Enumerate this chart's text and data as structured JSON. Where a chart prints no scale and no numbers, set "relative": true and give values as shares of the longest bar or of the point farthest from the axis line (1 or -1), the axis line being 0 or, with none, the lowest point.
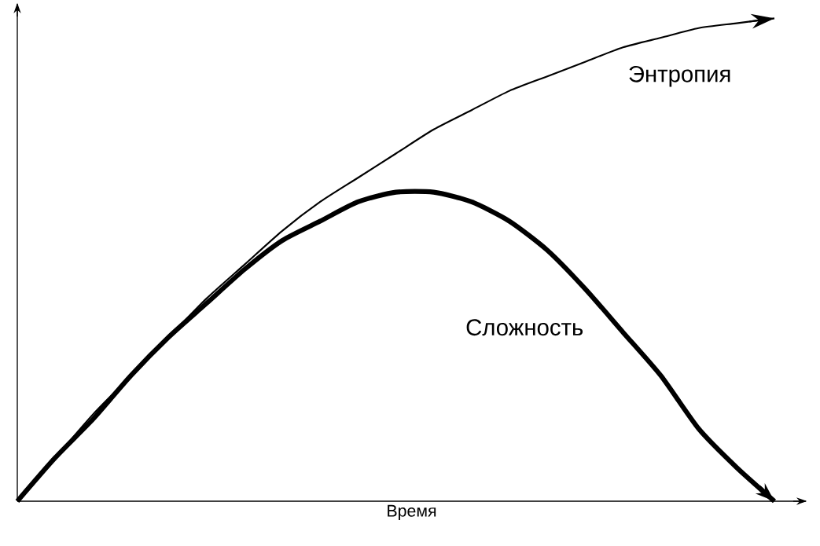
{
  "chart_data": {
    "type": "line",
    "relative": true,
    "xlabel": "Время",
    "legend": false,
    "marker": "none",
    "line_style": "solid",
    "categories": [
      null,
      null,
      null,
      null,
      null,
      null,
      null,
      null,
      null,
      null,
      null,
      null,
      null,
      null,
      null,
      null,
      null,
      null,
      null,
      null,
      null
    ],
    "series": [
      {
        "name": "Энтропия",
        "color": "#000000",
        "values": [
          0,
          0.09,
          0.18,
          0.26,
          0.34,
          0.42,
          0.49,
          0.56,
          0.62,
          0.67,
          0.72,
          0.77,
          0.81,
          0.85,
          0.88,
          0.91,
          0.94,
          0.96,
          0.98,
          0.99,
          1
        ]
      },
      {
        "name": "Сложность",
        "color": "#000000",
        "values": [
          0,
          0.09,
          0.17,
          0.26,
          0.34,
          0.41,
          0.48,
          0.54,
          0.58,
          0.62,
          0.64,
          0.64,
          0.62,
          0.58,
          0.52,
          0.44,
          0.35,
          0.26,
          0.15,
          0.07,
          0
        ]
      }
    ]
  }
}
